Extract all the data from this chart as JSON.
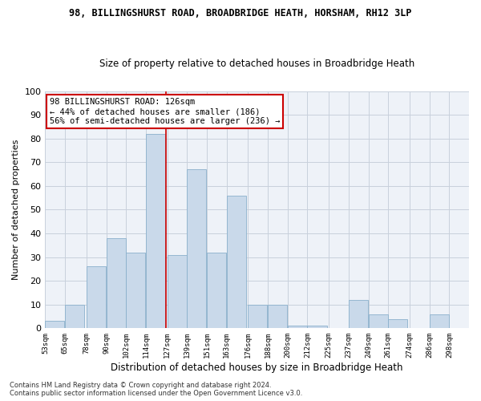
{
  "title1": "98, BILLINGSHURST ROAD, BROADBRIDGE HEATH, HORSHAM, RH12 3LP",
  "title2": "Size of property relative to detached houses in Broadbridge Heath",
  "xlabel": "Distribution of detached houses by size in Broadbridge Heath",
  "ylabel": "Number of detached properties",
  "footer1": "Contains HM Land Registry data © Crown copyright and database right 2024.",
  "footer2": "Contains public sector information licensed under the Open Government Licence v3.0.",
  "bin_labels": [
    "53sqm",
    "65sqm",
    "78sqm",
    "90sqm",
    "102sqm",
    "114sqm",
    "127sqm",
    "139sqm",
    "151sqm",
    "163sqm",
    "176sqm",
    "188sqm",
    "200sqm",
    "212sqm",
    "225sqm",
    "237sqm",
    "249sqm",
    "261sqm",
    "274sqm",
    "286sqm",
    "298sqm"
  ],
  "bar_values": [
    3,
    10,
    26,
    38,
    32,
    82,
    31,
    67,
    32,
    56,
    10,
    10,
    1,
    1,
    0,
    12,
    6,
    4,
    0,
    6,
    0
  ],
  "bar_color": "#c9d9ea",
  "bar_edge_color": "#8ab0cc",
  "grid_color": "#c8d0dc",
  "background_color": "#eef2f8",
  "annotation_line1": "98 BILLINGSHURST ROAD: 126sqm",
  "annotation_line2": "← 44% of detached houses are smaller (186)",
  "annotation_line3": "56% of semi-detached houses are larger (236) →",
  "annotation_box_color": "#ffffff",
  "annotation_box_edge": "#cc0000",
  "vline_color": "#cc0000",
  "ylim": [
    0,
    100
  ],
  "title1_fontsize": 8.5,
  "title2_fontsize": 8.5,
  "ylabel_fontsize": 8,
  "xlabel_fontsize": 8.5
}
